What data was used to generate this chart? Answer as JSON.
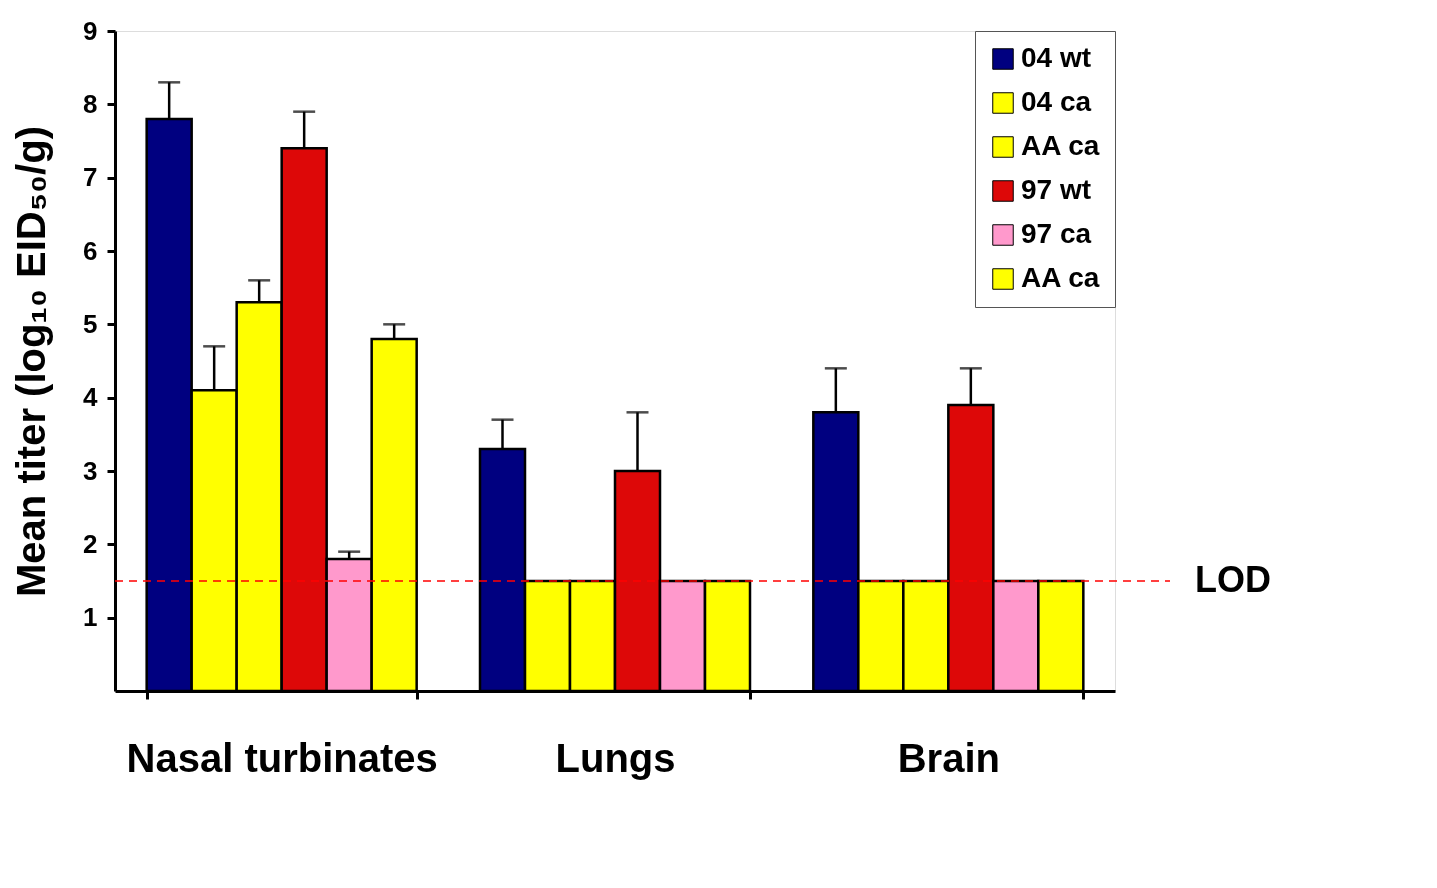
{
  "chart_data": {
    "type": "bar",
    "ylabel": "Mean titer (log₁₀ EID₅₀/g)",
    "categories": [
      "Nasal turbinates",
      "Lungs",
      "Brain"
    ],
    "series": [
      {
        "name": "04 wt",
        "color": "#000080",
        "values": [
          7.8,
          3.3,
          3.8
        ],
        "errors": [
          [
            7.8,
            8.3
          ],
          [
            3.3,
            3.7
          ],
          [
            3.8,
            4.4
          ]
        ]
      },
      {
        "name": "04 ca",
        "color": "#ffff00",
        "values": [
          4.1,
          1.5,
          1.5
        ],
        "errors": [
          [
            4.1,
            4.7
          ],
          null,
          null
        ]
      },
      {
        "name": "AA ca",
        "color": "#ffff00",
        "values": [
          5.3,
          1.5,
          1.5
        ],
        "errors": [
          [
            5.3,
            5.6
          ],
          null,
          null
        ]
      },
      {
        "name": "97 wt",
        "color": "#dd0808",
        "values": [
          7.4,
          3.0,
          3.9
        ],
        "errors": [
          [
            7.4,
            7.9
          ],
          [
            3.0,
            3.8
          ],
          [
            3.9,
            4.4
          ]
        ]
      },
      {
        "name": "97 ca",
        "color": "#ff99cc",
        "values": [
          1.8,
          1.5,
          1.5
        ],
        "errors": [
          [
            1.8,
            1.9
          ],
          null,
          null
        ]
      },
      {
        "name": "AA ca",
        "color": "#ffff00",
        "values": [
          4.8,
          1.5,
          1.5
        ],
        "errors": [
          [
            4.8,
            5.0
          ],
          null,
          null
        ]
      }
    ],
    "ylim": [
      0,
      9
    ],
    "yticks": [
      1,
      2,
      3,
      4,
      5,
      6,
      7,
      8,
      9
    ],
    "ref_lines": [
      {
        "axis": "y",
        "value": 1.5,
        "label": "LOD",
        "color": "#ff0000",
        "line_style": "dashed"
      }
    ],
    "grid": false,
    "legend": "top right"
  }
}
